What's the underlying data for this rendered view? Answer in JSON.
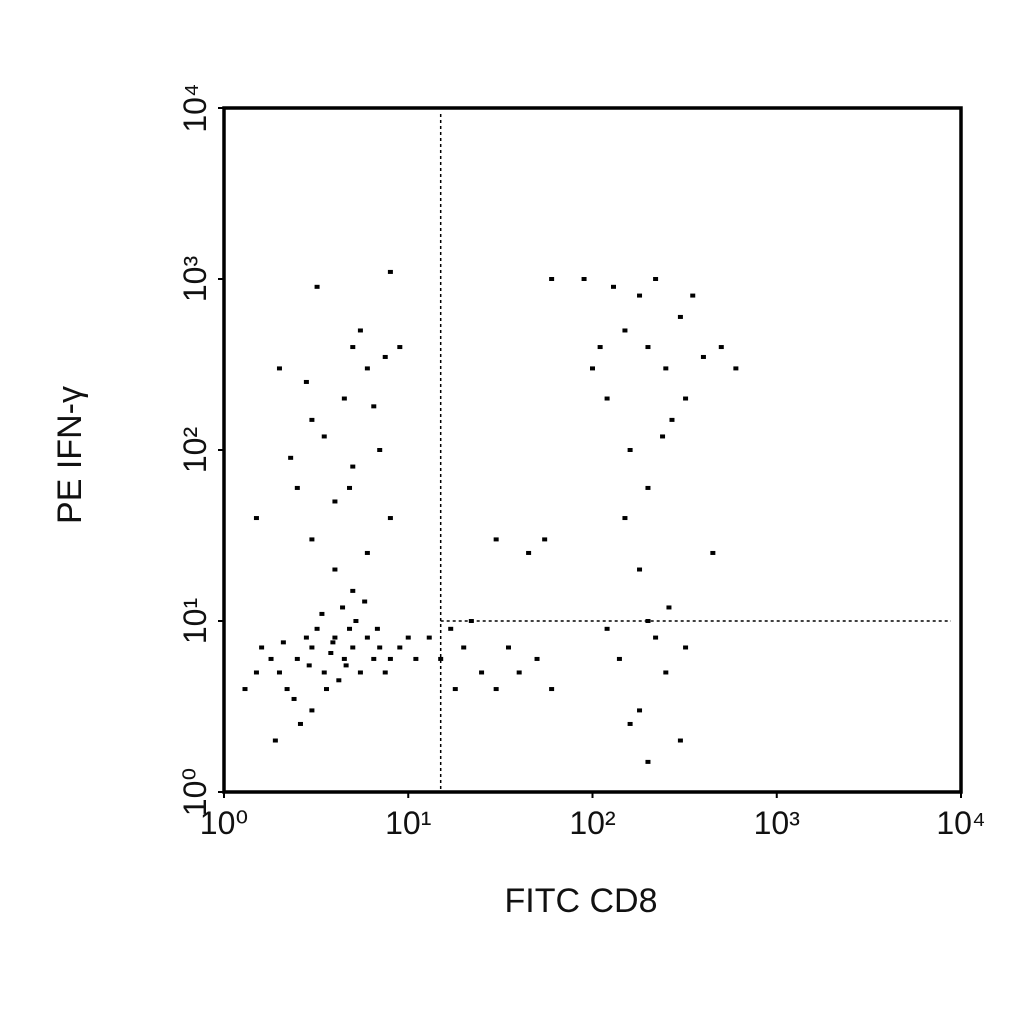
{
  "chart_data": {
    "type": "scatter",
    "x_label": "FITC CD8",
    "y_label": "PE IFN-γ",
    "xscale": "log",
    "yscale": "log",
    "xlim": [
      1,
      10000
    ],
    "ylim": [
      1,
      10000
    ],
    "xticks": [
      {
        "value": 1,
        "label": "10⁰"
      },
      {
        "value": 10,
        "label": "10¹"
      },
      {
        "value": 100,
        "label": "10²"
      },
      {
        "value": 1000,
        "label": "10³"
      },
      {
        "value": 10000,
        "label": "10⁴"
      }
    ],
    "yticks": [
      {
        "value": 1,
        "label": "10⁰"
      },
      {
        "value": 10,
        "label": "10¹"
      },
      {
        "value": 100,
        "label": "10²"
      },
      {
        "value": 1000,
        "label": "10³"
      },
      {
        "value": 10000,
        "label": "10⁴"
      }
    ],
    "gates": {
      "x": 15,
      "y": 10
    },
    "series": [
      {
        "color": "#000000",
        "x": [
          2.5,
          3,
          3.5,
          4,
          4.5,
          5,
          2,
          2.2,
          2.8,
          3.2,
          3.8,
          4.2,
          5.5,
          6,
          6.5,
          7,
          1.8,
          1.5,
          1.3,
          2.4,
          3,
          3.6,
          4.8,
          5.2,
          6.8,
          8,
          9,
          2.6,
          1.9,
          3.4,
          4.4,
          5.8,
          2.1,
          2.9,
          3.9,
          4.6,
          7.5,
          1.6,
          10,
          11,
          3,
          4,
          5,
          3.5,
          4.5,
          6,
          5,
          3,
          2.5,
          7,
          8,
          6,
          4,
          2.8,
          7.5,
          5.5,
          3.2,
          8,
          9,
          4.8,
          6.5,
          2.3,
          1.5,
          2,
          5,
          13,
          15,
          17,
          20,
          25,
          30,
          35,
          40,
          50,
          60,
          18,
          22,
          45,
          30,
          55,
          100,
          120,
          150,
          200,
          250,
          300,
          180,
          220,
          130,
          270,
          320,
          350,
          160,
          200,
          240,
          110,
          90,
          400,
          600,
          500,
          150,
          180,
          200,
          220,
          250,
          180,
          300,
          120,
          140,
          260,
          320,
          200,
          160,
          60,
          450
        ],
        "y": [
          6,
          7,
          5,
          8,
          6,
          7,
          5,
          4,
          8,
          9,
          6.5,
          4.5,
          5,
          8,
          6,
          7,
          6,
          5,
          4,
          3.5,
          3,
          4,
          9,
          10,
          9,
          6,
          7,
          2.5,
          2,
          11,
          12,
          13,
          7.5,
          5.5,
          7.5,
          5.5,
          5,
          7,
          8,
          6,
          30,
          50,
          80,
          120,
          200,
          300,
          400,
          150,
          60,
          100,
          40,
          25,
          20,
          250,
          350,
          500,
          900,
          1100,
          400,
          60,
          180,
          90,
          40,
          300,
          15,
          8,
          6,
          9,
          7,
          5,
          4,
          7,
          5,
          6,
          4,
          4,
          10,
          25,
          30,
          30,
          300,
          200,
          500,
          400,
          300,
          600,
          800,
          1000,
          900,
          150,
          200,
          800,
          100,
          60,
          120,
          400,
          1000,
          350,
          300,
          400,
          40,
          20,
          10,
          8,
          5,
          3,
          2,
          9,
          6,
          12,
          7,
          1.5,
          2.5,
          1000,
          25
        ]
      }
    ]
  }
}
